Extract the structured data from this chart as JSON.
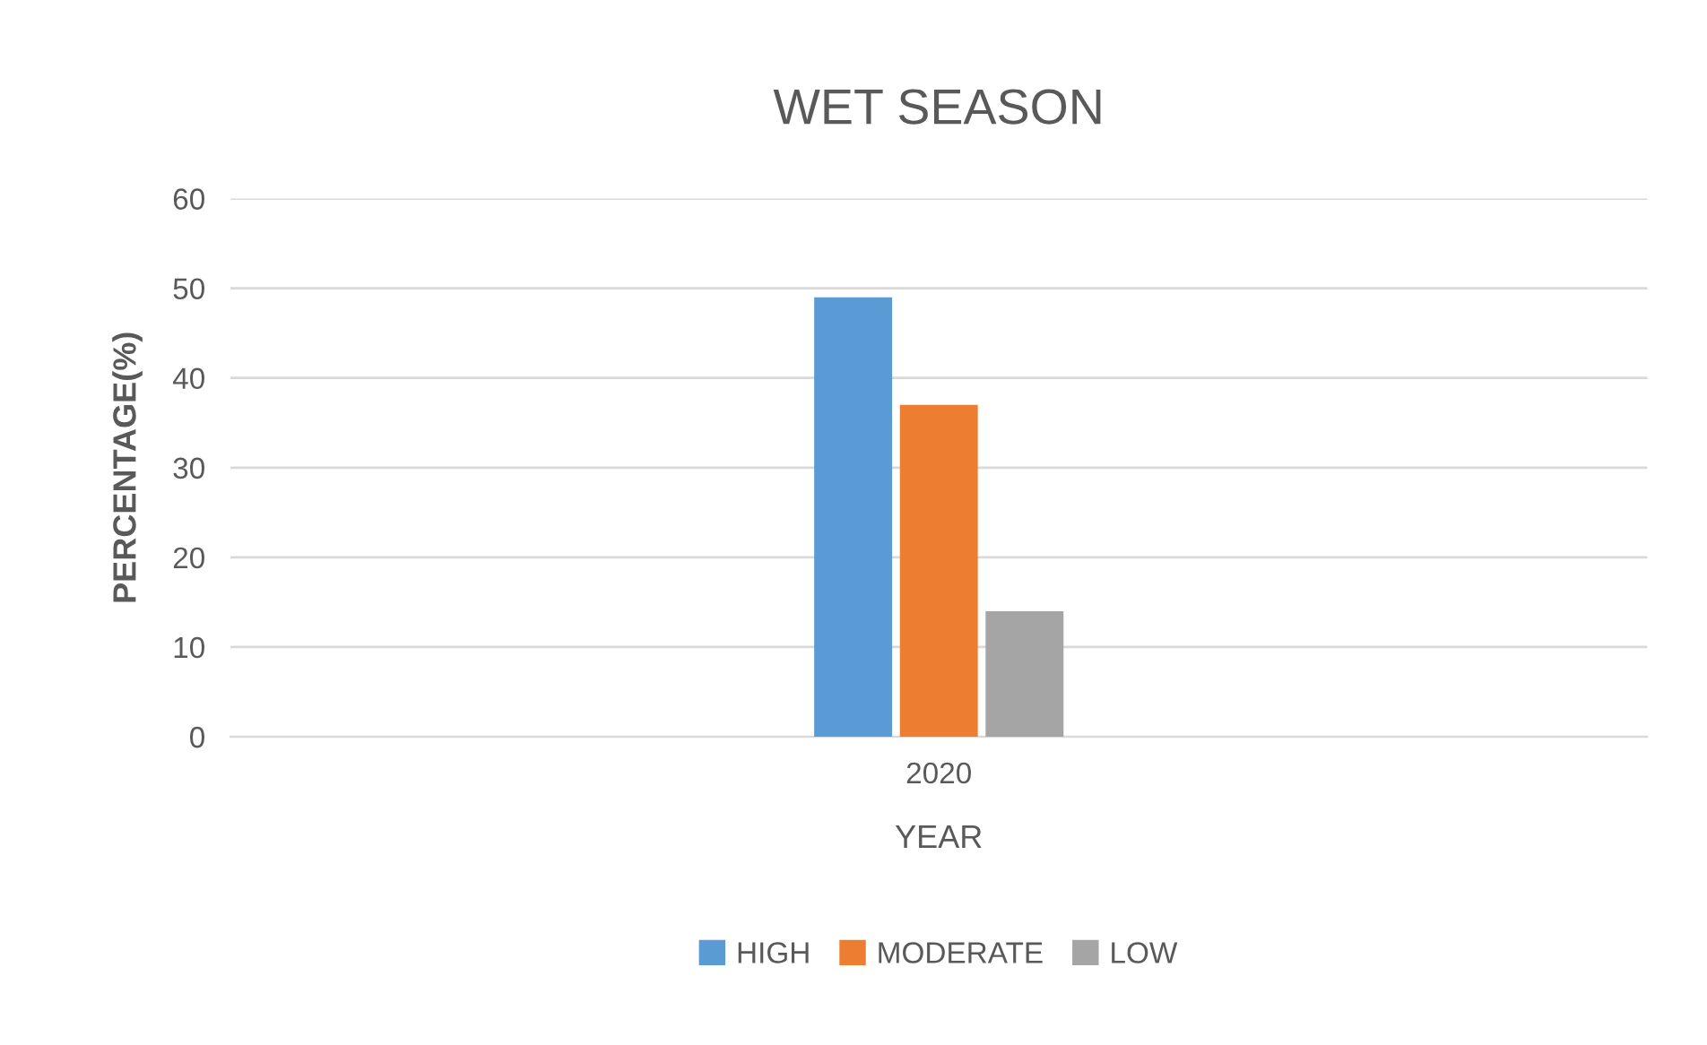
{
  "chart_data": {
    "type": "bar",
    "title": "WET SEASON",
    "xlabel": "YEAR",
    "ylabel": "PERCENTAGE(%)",
    "categories": [
      "2020"
    ],
    "series": [
      {
        "name": "HIGH",
        "color": "#5b9bd5",
        "values": [
          49
        ]
      },
      {
        "name": "MODERATE",
        "color": "#ed7d31",
        "values": [
          37
        ]
      },
      {
        "name": "LOW",
        "color": "#a5a5a5",
        "values": [
          14
        ]
      }
    ],
    "ylim": [
      0,
      60
    ],
    "yticks": [
      0,
      10,
      20,
      30,
      40,
      50,
      60
    ],
    "grid": "y",
    "legend": "bottom"
  }
}
